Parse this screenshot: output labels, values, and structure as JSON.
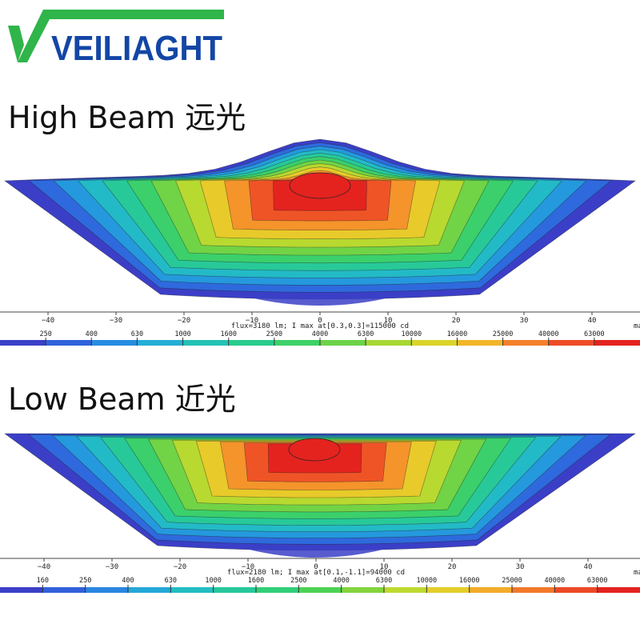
{
  "brand": {
    "name": "VEILIAGHT",
    "color_dark": "#1346a5",
    "color_green": "#2fb54a"
  },
  "sections": [
    {
      "title": "High Beam 远光"
    },
    {
      "title": "Low Beam 近光"
    }
  ],
  "chart_data": [
    {
      "type": "heatmap",
      "title": "High Beam 远光",
      "x_ticks": [
        -40,
        -30,
        -20,
        -10,
        0,
        10,
        20,
        30,
        40
      ],
      "x_unit": "ma",
      "xlim": [
        -47,
        47
      ],
      "caption": "flux=3180 lm; I max at[0.3,0.3]=115000 cd",
      "flux_lm": 3180,
      "imax_cd": 115000,
      "imax_at": [
        0.3,
        0.3
      ],
      "colorbar_ticks": [
        "250",
        "400",
        "630",
        "1000",
        "1600",
        "2500",
        "4000",
        "6300",
        "10000",
        "16000",
        "25000",
        "40000",
        "63000"
      ],
      "colorbar_colors": [
        "#3b3fc7",
        "#2f66dd",
        "#2693e0",
        "#22b6d2",
        "#25c6a8",
        "#2ccf7e",
        "#4cd255",
        "#8fd43a",
        "#cfdc2b",
        "#f2c329",
        "#f48a2b",
        "#ef4f27",
        "#e4231f"
      ]
    },
    {
      "type": "heatmap",
      "title": "Low Beam 近光",
      "x_ticks": [
        -40,
        -30,
        -20,
        -10,
        0,
        10,
        20,
        30,
        40
      ],
      "x_unit": "ma",
      "xlim": [
        -47,
        47
      ],
      "caption": "flux=2180 lm; I max at[0.1,-1.1]=94000 cd",
      "flux_lm": 2180,
      "imax_cd": 94000,
      "imax_at": [
        0.1,
        -1.1
      ],
      "colorbar_ticks": [
        "160",
        "250",
        "400",
        "630",
        "1000",
        "1600",
        "2500",
        "4000",
        "6300",
        "10000",
        "16000",
        "25000",
        "40000",
        "63000"
      ],
      "colorbar_colors": [
        "#3b3fc7",
        "#2f66dd",
        "#2693e0",
        "#22b6d2",
        "#25c6a8",
        "#2ccf7e",
        "#4cd255",
        "#8fd43a",
        "#cfdc2b",
        "#f2c329",
        "#f48a2b",
        "#ef4f27",
        "#e4231f"
      ]
    }
  ]
}
